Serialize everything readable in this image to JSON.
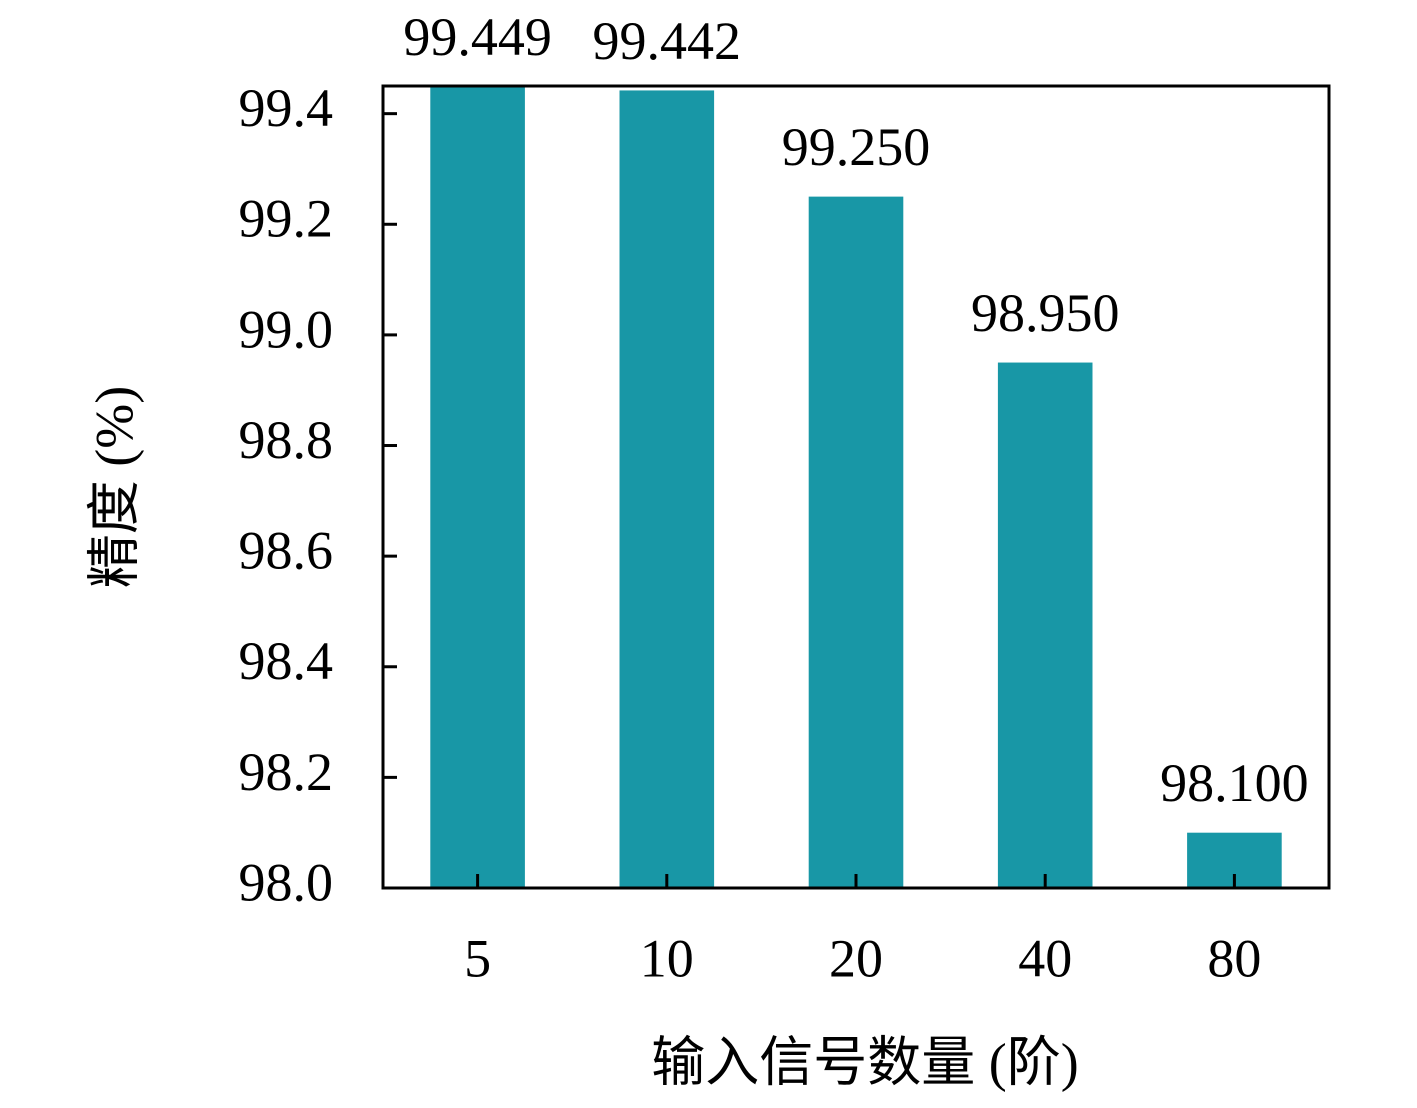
{
  "chart_data": {
    "type": "bar",
    "x_label": "输入信号数量 (阶)",
    "y_label": "精度 (%)",
    "categories": [
      "5",
      "10",
      "20",
      "40",
      "80"
    ],
    "values": [
      99.449,
      99.442,
      99.25,
      98.95,
      98.1
    ],
    "value_labels": [
      "99.449",
      "99.442",
      "99.250",
      "98.950",
      "98.100"
    ],
    "color": "#1897a6",
    "ylim": [
      98.0,
      99.45
    ],
    "yticks": [
      {
        "value": 98.0,
        "label": "98.0"
      },
      98.2,
      98.4,
      98.6,
      98.8,
      {
        "value": 99.0,
        "label": "99.0"
      },
      99.2,
      99.4
    ],
    "grid": false
  }
}
